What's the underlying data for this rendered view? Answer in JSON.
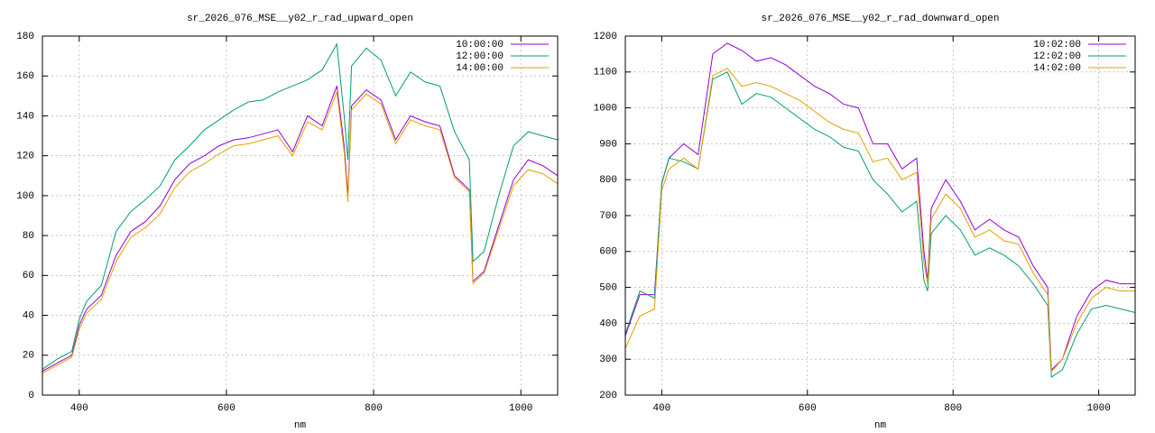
{
  "chart_data": [
    {
      "type": "line",
      "title": "sr_2026_076_MSE__y02_r_rad_upward_open",
      "x_label": "nm",
      "x": [
        350,
        370,
        390,
        400,
        410,
        430,
        450,
        470,
        490,
        510,
        530,
        550,
        570,
        590,
        610,
        630,
        650,
        670,
        690,
        710,
        730,
        750,
        760,
        765,
        770,
        790,
        810,
        830,
        850,
        870,
        890,
        910,
        930,
        935,
        950,
        970,
        990,
        1010,
        1030,
        1050
      ],
      "series": [
        {
          "name": "10:00:00",
          "color": "#9400d3",
          "values": [
            12,
            16,
            20,
            35,
            43,
            50,
            70,
            82,
            87,
            95,
            108,
            116,
            120,
            125,
            128,
            129,
            131,
            133,
            122,
            140,
            135,
            155,
            125,
            100,
            145,
            153,
            148,
            128,
            140,
            137,
            135,
            110,
            103,
            57,
            62,
            85,
            108,
            118,
            115,
            110
          ]
        },
        {
          "name": "12:00:00",
          "color": "#009e73",
          "values": [
            13,
            18,
            22,
            38,
            47,
            55,
            82,
            92,
            98,
            105,
            118,
            125,
            133,
            138,
            143,
            147,
            148,
            152,
            155,
            158,
            163,
            176,
            140,
            118,
            165,
            174,
            168,
            150,
            162,
            157,
            155,
            132,
            118,
            67,
            72,
            100,
            125,
            132,
            130,
            128
          ]
        },
        {
          "name": "14:00:00",
          "color": "#e69f00",
          "values": [
            11,
            15,
            19,
            33,
            41,
            48,
            67,
            79,
            84,
            91,
            104,
            112,
            116,
            121,
            125,
            126,
            128,
            130,
            120,
            137,
            133,
            152,
            122,
            97,
            143,
            151,
            146,
            126,
            138,
            135,
            133,
            109,
            102,
            56,
            61,
            83,
            105,
            113,
            111,
            106
          ]
        }
      ],
      "xlim": [
        350,
        1050
      ],
      "xticks": [
        400,
        600,
        800,
        1000
      ],
      "ylim": [
        0,
        180
      ],
      "yticks": [
        0,
        20,
        40,
        60,
        80,
        100,
        120,
        140,
        160,
        180
      ],
      "grid": true,
      "legend": "top-right"
    },
    {
      "type": "line",
      "title": "sr_2026_076_MSE__y02_r_rad_downward_open",
      "x_label": "nm",
      "x": [
        350,
        370,
        390,
        400,
        410,
        430,
        450,
        470,
        490,
        510,
        530,
        550,
        570,
        590,
        610,
        630,
        650,
        670,
        690,
        710,
        730,
        750,
        760,
        765,
        770,
        790,
        810,
        830,
        850,
        870,
        890,
        910,
        930,
        935,
        950,
        970,
        990,
        1010,
        1030,
        1050
      ],
      "series": [
        {
          "name": "10:02:00",
          "color": "#9400d3",
          "values": [
            365,
            480,
            480,
            790,
            860,
            900,
            870,
            1150,
            1180,
            1160,
            1130,
            1140,
            1120,
            1090,
            1060,
            1040,
            1010,
            1000,
            900,
            900,
            830,
            860,
            600,
            520,
            720,
            800,
            740,
            660,
            690,
            660,
            640,
            560,
            500,
            270,
            300,
            420,
            490,
            520,
            510,
            510
          ]
        },
        {
          "name": "12:02:00",
          "color": "#009e73",
          "values": [
            370,
            490,
            470,
            790,
            860,
            850,
            830,
            1080,
            1100,
            1010,
            1040,
            1030,
            1000,
            970,
            940,
            920,
            890,
            880,
            800,
            760,
            710,
            740,
            520,
            490,
            650,
            700,
            660,
            590,
            610,
            590,
            560,
            510,
            450,
            250,
            270,
            370,
            440,
            450,
            440,
            430
          ]
        },
        {
          "name": "14:02:00",
          "color": "#e69f00",
          "values": [
            330,
            420,
            440,
            770,
            830,
            860,
            830,
            1090,
            1110,
            1060,
            1070,
            1060,
            1040,
            1020,
            990,
            960,
            940,
            930,
            850,
            860,
            800,
            820,
            570,
            510,
            690,
            760,
            720,
            640,
            660,
            630,
            620,
            540,
            480,
            265,
            300,
            400,
            470,
            500,
            490,
            490
          ]
        }
      ],
      "xlim": [
        350,
        1050
      ],
      "xticks": [
        400,
        600,
        800,
        1000
      ],
      "ylim": [
        200,
        1200
      ],
      "yticks": [
        200,
        300,
        400,
        500,
        600,
        700,
        800,
        900,
        1000,
        1100,
        1200
      ],
      "grid": true,
      "legend": "top-right"
    }
  ]
}
